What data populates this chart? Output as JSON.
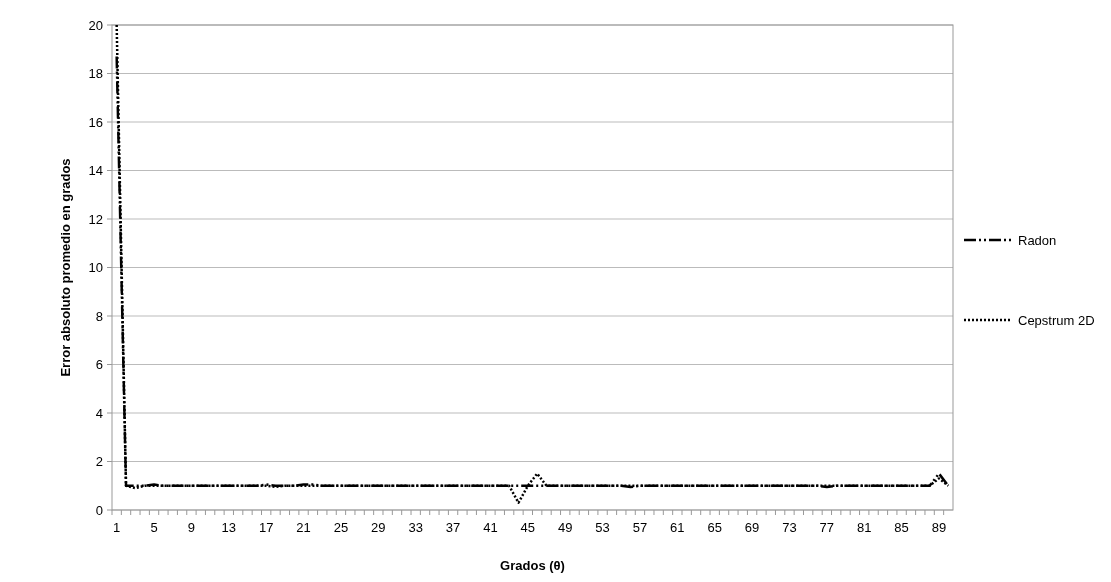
{
  "chart_data": {
    "type": "line",
    "xlabel": "Grados (θ)",
    "ylabel": "Error absoluto promedio en grados",
    "categories": [
      "1",
      null,
      null,
      null,
      "5",
      null,
      null,
      null,
      "9",
      null,
      null,
      null,
      "13",
      null,
      null,
      null,
      "17",
      null,
      null,
      null,
      "21",
      null,
      null,
      null,
      "25",
      null,
      null,
      null,
      "29",
      null,
      null,
      null,
      "33",
      null,
      null,
      null,
      "37",
      null,
      null,
      null,
      "41",
      null,
      null,
      null,
      "45",
      null,
      null,
      null,
      "49",
      null,
      null,
      null,
      "53",
      null,
      null,
      null,
      "57",
      null,
      null,
      null,
      "61",
      null,
      null,
      null,
      "65",
      null,
      null,
      null,
      "69",
      null,
      null,
      null,
      "73",
      null,
      null,
      null,
      "77",
      null,
      null,
      null,
      "81",
      null,
      null,
      null,
      "85",
      null,
      null,
      null,
      "89",
      null
    ],
    "series": [
      {
        "name": "Radon",
        "color": "#000000",
        "line_style": "dashdotdot",
        "values": [
          18.7,
          1,
          1,
          1,
          1.05,
          1,
          1,
          1,
          1,
          1,
          1,
          1,
          1,
          1,
          1,
          1,
          1.05,
          1,
          1,
          1,
          1.05,
          1.05,
          1,
          1,
          1,
          1,
          1,
          1,
          1,
          1,
          1,
          1,
          1,
          1,
          1,
          1,
          1,
          1,
          1,
          1,
          1,
          1,
          1,
          1,
          1,
          1,
          1,
          1,
          1,
          1,
          1,
          1,
          1,
          1,
          1,
          0.95,
          1,
          1,
          1,
          1,
          1,
          1,
          1,
          1,
          1,
          1,
          1,
          1,
          1,
          1,
          1,
          1,
          1,
          1,
          1,
          1,
          0.95,
          1,
          1,
          1,
          1,
          1,
          1,
          1,
          1,
          1,
          1,
          1,
          1.5,
          1
        ]
      },
      {
        "name": "Cepstrum 2D",
        "color": "#000000",
        "line_style": "dotted",
        "values": [
          20,
          1,
          0.9,
          1,
          1,
          1,
          1,
          1,
          1,
          1,
          1,
          1,
          1,
          1,
          1,
          1,
          1,
          0.95,
          1,
          1,
          1,
          1,
          1,
          1,
          1,
          1,
          1,
          1,
          1,
          1,
          1,
          1,
          1,
          1,
          1,
          1,
          1,
          1,
          1,
          1,
          1,
          1,
          1,
          0.3,
          1,
          1.5,
          1,
          1,
          1,
          1,
          1,
          1,
          1,
          1,
          1,
          1,
          1,
          1,
          1,
          1,
          1,
          1,
          1,
          1,
          1,
          1,
          1,
          1,
          1,
          1,
          1,
          1,
          1,
          1,
          1,
          1,
          1,
          1,
          1,
          1,
          1,
          1,
          1,
          1,
          1,
          1,
          1,
          1,
          1.3,
          1
        ]
      }
    ],
    "ylim": [
      0,
      20
    ],
    "yticks": [
      0,
      2,
      4,
      6,
      8,
      10,
      12,
      14,
      16,
      18,
      20
    ],
    "grid": "y",
    "legend": "right"
  }
}
